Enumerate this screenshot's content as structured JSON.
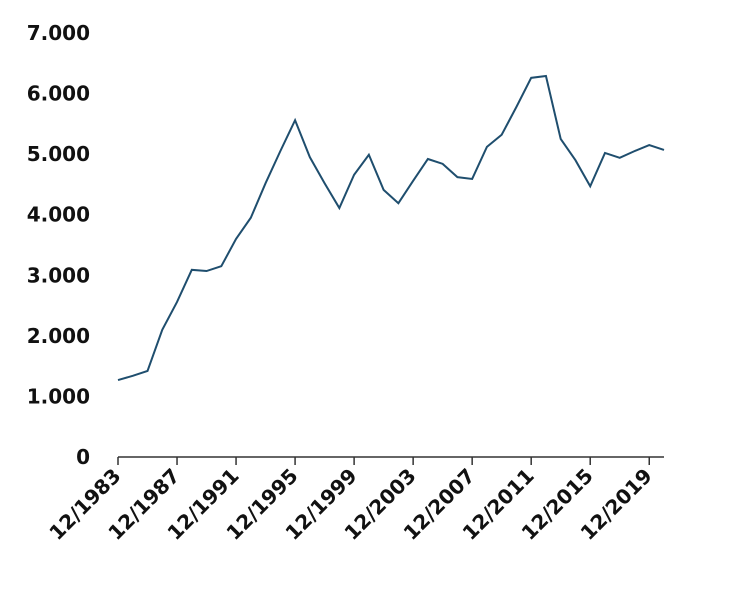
{
  "chart_data": {
    "type": "line",
    "x": [
      1983,
      1984,
      1985,
      1986,
      1987,
      1988,
      1989,
      1990,
      1991,
      1992,
      1993,
      1994,
      1995,
      1996,
      1997,
      1998,
      1999,
      2000,
      2001,
      2002,
      2003,
      2004,
      2005,
      2006,
      2007,
      2008,
      2009,
      2010,
      2011,
      2012,
      2013,
      2014,
      2015,
      2016,
      2017,
      2018,
      2019,
      2020
    ],
    "series": [
      {
        "color": "#1f4e6e",
        "values": [
          1270,
          1340,
          1420,
          2100,
          2560,
          3090,
          3070,
          3150,
          3600,
          3950,
          4520,
          5050,
          5560,
          4950,
          4520,
          4110,
          4660,
          4990,
          4410,
          4190,
          4560,
          4920,
          4840,
          4620,
          4590,
          5120,
          5320,
          5780,
          6260,
          6290,
          5250,
          4900,
          4470,
          5020,
          4940,
          5050,
          5150,
          5070
        ]
      }
    ],
    "xlim": [
      1983,
      2020
    ],
    "xticks": [
      {
        "value": 1983,
        "label": "12/1983"
      },
      {
        "value": 1987,
        "label": "12/1987"
      },
      {
        "value": 1991,
        "label": "12/1991"
      },
      {
        "value": 1995,
        "label": "12/1995"
      },
      {
        "value": 1999,
        "label": "12/1999"
      },
      {
        "value": 2003,
        "label": "12/2003"
      },
      {
        "value": 2007,
        "label": "12/2007"
      },
      {
        "value": 2011,
        "label": "12/2011"
      },
      {
        "value": 2015,
        "label": "12/2015"
      },
      {
        "value": 2019,
        "label": "12/2019"
      }
    ],
    "ylim": [
      0,
      7000
    ],
    "yticks": [
      0,
      {
        "value": 1000,
        "label": "1.000"
      },
      {
        "value": 2000,
        "label": "2.000"
      },
      {
        "value": 3000,
        "label": "3.000"
      },
      {
        "value": 4000,
        "label": "4.000"
      },
      {
        "value": 5000,
        "label": "5.000"
      },
      {
        "value": 6000,
        "label": "6.000"
      },
      {
        "value": 7000,
        "label": "7.000"
      }
    ]
  }
}
